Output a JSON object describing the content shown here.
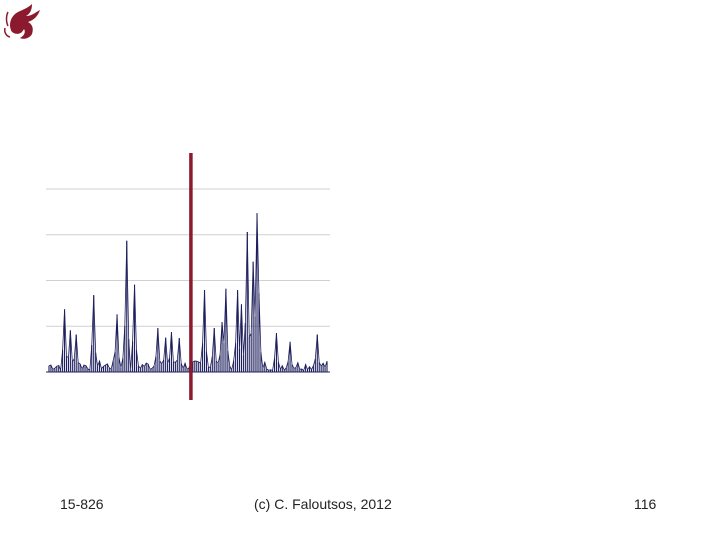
{
  "footer": {
    "course": "15-826",
    "copyright": "(c) C. Faloutsos, 2012",
    "page_number": "116"
  },
  "colors": {
    "spike": "#1e1f5c",
    "marker": "#8b1a2e",
    "gridline": "#d0d0d0",
    "logo": "#8b1a2e"
  },
  "chart_data": {
    "type": "line",
    "grid": true,
    "legend": "none",
    "ylim": [
      0,
      4
    ],
    "gridlines_at": [
      1,
      2,
      3,
      4
    ],
    "n_points": 144,
    "peaks": [
      {
        "i": 8,
        "v": 1.37
      },
      {
        "i": 11,
        "v": 0.91
      },
      {
        "i": 14,
        "v": 0.82
      },
      {
        "i": 23,
        "v": 1.68
      },
      {
        "i": 35,
        "v": 1.26
      },
      {
        "i": 39,
        "v": 0.85
      },
      {
        "i": 40,
        "v": 2.87
      },
      {
        "i": 44,
        "v": 1.91
      },
      {
        "i": 56,
        "v": 0.96
      },
      {
        "i": 60,
        "v": 0.75
      },
      {
        "i": 63,
        "v": 0.87
      },
      {
        "i": 67,
        "v": 0.74
      },
      {
        "i": 80,
        "v": 1.79
      },
      {
        "i": 85,
        "v": 0.96
      },
      {
        "i": 89,
        "v": 1.09
      },
      {
        "i": 91,
        "v": 1.82
      },
      {
        "i": 97,
        "v": 1.79
      },
      {
        "i": 99,
        "v": 1.48
      },
      {
        "i": 102,
        "v": 3.06
      },
      {
        "i": 105,
        "v": 2.41
      },
      {
        "i": 107,
        "v": 3.47
      },
      {
        "i": 108,
        "v": 1.72
      },
      {
        "i": 117,
        "v": 0.85
      },
      {
        "i": 124,
        "v": 0.66
      },
      {
        "i": 138,
        "v": 0.82
      }
    ],
    "marker_index": 73
  }
}
